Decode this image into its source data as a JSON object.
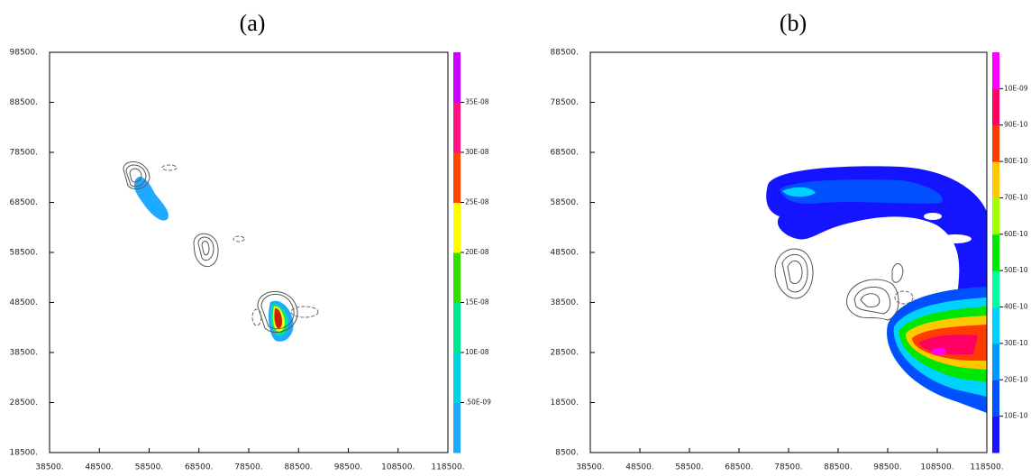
{
  "chart_data": [
    {
      "type": "contour",
      "title": "(a)",
      "xlim": [
        38500,
        118500
      ],
      "ylim": [
        18500,
        98500
      ],
      "xticks": [
        {
          "value": 38500,
          "label": "38500."
        },
        {
          "value": 48500,
          "label": "48500."
        },
        {
          "value": 58500,
          "label": "58500."
        },
        {
          "value": 68500,
          "label": "68500."
        },
        {
          "value": 78500,
          "label": "78500."
        },
        {
          "value": 88500,
          "label": "88500."
        },
        {
          "value": 98500,
          "label": "98500."
        },
        {
          "value": 108500,
          "label": "108500."
        },
        {
          "value": 118500,
          "label": "118500."
        }
      ],
      "yticks": [
        {
          "value": 18500,
          "label": "18500."
        },
        {
          "value": 28500,
          "label": "28500."
        },
        {
          "value": 38500,
          "label": "38500."
        },
        {
          "value": 48500,
          "label": "48500."
        },
        {
          "value": 58500,
          "label": "58500."
        },
        {
          "value": 68500,
          "label": "68500."
        },
        {
          "value": 78500,
          "label": "78500."
        },
        {
          "value": 88500,
          "label": "88500."
        },
        {
          "value": 98500,
          "label": "98500."
        }
      ],
      "colorbar": {
        "colors": [
          "#1eaaff",
          "#00d2e0",
          "#00e68c",
          "#33dd00",
          "#ffff00",
          "#ff4400",
          "#ff1480",
          "#c800ff"
        ],
        "labels": [
          ".50E-09",
          "10E-08",
          "15E-08",
          "20E-08",
          "25E-08",
          "30E-08",
          "35E-08"
        ]
      }
    },
    {
      "type": "contour",
      "title": "(b)",
      "xlim": [
        38500,
        118500
      ],
      "ylim": [
        8500,
        88500
      ],
      "xticks": [
        {
          "value": 38500,
          "label": "38500."
        },
        {
          "value": 48500,
          "label": "48500."
        },
        {
          "value": 58500,
          "label": "58500."
        },
        {
          "value": 68500,
          "label": "68500."
        },
        {
          "value": 78500,
          "label": "78500."
        },
        {
          "value": 88500,
          "label": "88500."
        },
        {
          "value": 98500,
          "label": "98500."
        },
        {
          "value": 108500,
          "label": "108500."
        },
        {
          "value": 118500,
          "label": "118500."
        }
      ],
      "yticks": [
        {
          "value": 8500,
          "label": "8500."
        },
        {
          "value": 18500,
          "label": "18500."
        },
        {
          "value": 28500,
          "label": "28500."
        },
        {
          "value": 38500,
          "label": "38500."
        },
        {
          "value": 48500,
          "label": "48500."
        },
        {
          "value": 58500,
          "label": "58500."
        },
        {
          "value": 68500,
          "label": "68500."
        },
        {
          "value": 78500,
          "label": "78500."
        },
        {
          "value": 88500,
          "label": "88500."
        }
      ],
      "colorbar": {
        "colors": [
          "#1414ff",
          "#0050ff",
          "#0096ff",
          "#00d2ff",
          "#00ffa0",
          "#00e600",
          "#a0ff00",
          "#ffc800",
          "#ff3c00",
          "#ff0064",
          "#ff00ff"
        ],
        "labels": [
          "10E-10",
          "20E-10",
          "30E-10",
          "40E-10",
          "50E-10",
          "60E-10",
          "70E-10",
          "80E-10",
          "90E-10",
          "10E-09"
        ]
      }
    }
  ]
}
